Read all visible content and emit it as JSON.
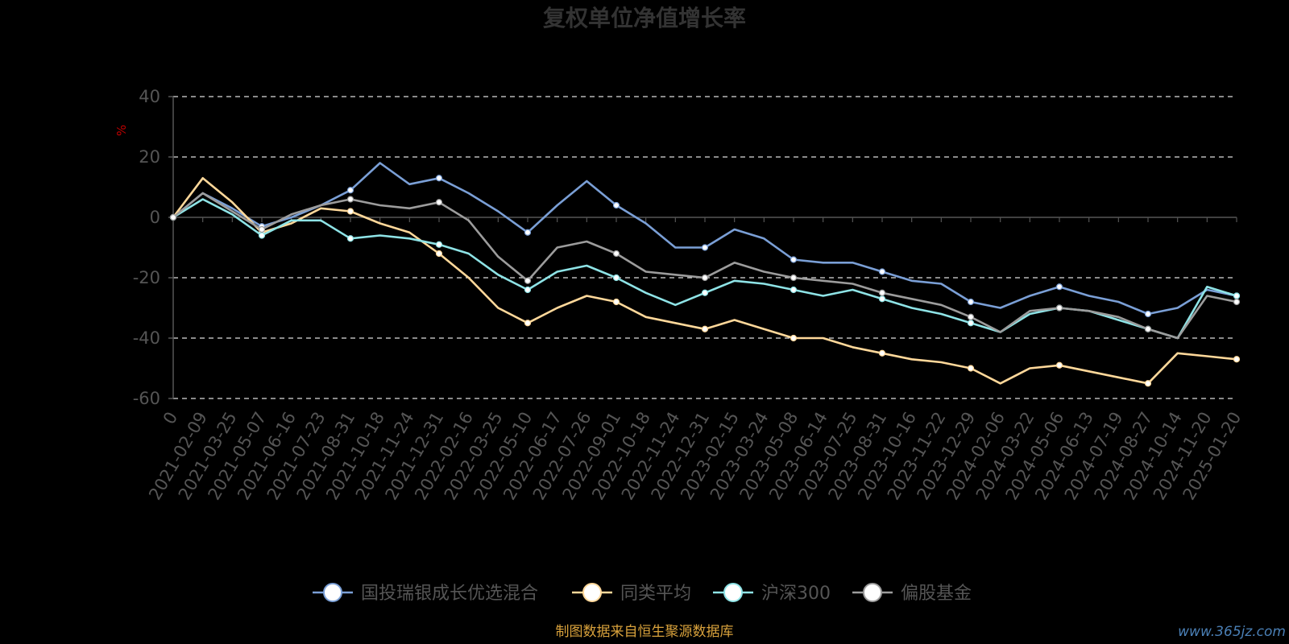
{
  "chart_data": {
    "type": "line",
    "title": "复权单位净值增长率",
    "ylabel": "%",
    "ylim": [
      -60,
      40
    ],
    "yticks": [
      40,
      20,
      0,
      -20,
      -40,
      -60
    ],
    "grid": true,
    "legend_position": "bottom",
    "x_tick_labels": [
      "0",
      "2021-02-09",
      "2021-03-25",
      "2021-05-07",
      "2021-06-16",
      "2021-07-23",
      "2021-08-31",
      "2021-10-18",
      "2021-11-24",
      "2021-12-31",
      "2022-02-16",
      "2022-03-25",
      "2022-05-10",
      "2022-06-17",
      "2022-07-26",
      "2022-09-01",
      "2022-10-18",
      "2022-11-24",
      "2022-12-31",
      "2023-02-15",
      "2023-03-24",
      "2023-05-08",
      "2023-06-14",
      "2023-07-25",
      "2023-08-31",
      "2023-10-16",
      "2023-11-22",
      "2023-12-29",
      "2024-02-06",
      "2024-03-22",
      "2024-05-06",
      "2024-06-13",
      "2024-07-19",
      "2024-08-27",
      "2024-10-14",
      "2024-11-20",
      "2025-01-20"
    ],
    "series": [
      {
        "name": "国投瑞银成长优选混合",
        "color": "#7a9fd6",
        "values": [
          0,
          8,
          3,
          -3,
          0,
          4,
          9,
          18,
          11,
          13,
          8,
          2,
          -5,
          4,
          12,
          4,
          -2,
          -10,
          -10,
          -4,
          -7,
          -14,
          -15,
          -15,
          -18,
          -21,
          -22,
          -28,
          -30,
          -26,
          -23,
          -26,
          -28,
          -32,
          -30,
          -24,
          -26
        ]
      },
      {
        "name": "同类平均",
        "color": "#ffd89a",
        "values": [
          0,
          13,
          5,
          -5,
          -2,
          3,
          2,
          -2,
          -5,
          -12,
          -20,
          -30,
          -35,
          -30,
          -26,
          -28,
          -33,
          -35,
          -37,
          -34,
          -37,
          -40,
          -40,
          -43,
          -45,
          -47,
          -48,
          -50,
          -55,
          -50,
          -49,
          -51,
          -53,
          -55,
          -45,
          -46,
          -47
        ]
      },
      {
        "name": "沪深300",
        "color": "#8ee3e6",
        "values": [
          0,
          6,
          1,
          -6,
          -1,
          -1,
          -7,
          -6,
          -7,
          -9,
          -12,
          -19,
          -24,
          -18,
          -16,
          -20,
          -25,
          -29,
          -25,
          -21,
          -22,
          -24,
          -26,
          -24,
          -27,
          -30,
          -32,
          -35,
          -38,
          -32,
          -30,
          -31,
          -34,
          -37,
          -40,
          -23,
          -26
        ]
      },
      {
        "name": "偏股基金",
        "color": "#9c9c9c",
        "values": [
          0,
          8,
          2,
          -4,
          1,
          4,
          6,
          4,
          3,
          5,
          -1,
          -13,
          -21,
          -10,
          -8,
          -12,
          -18,
          -19,
          -20,
          -15,
          -18,
          -20,
          -21,
          -22,
          -25,
          -27,
          -29,
          -33,
          -38,
          -31,
          -30,
          -31,
          -33,
          -37,
          -40,
          -26,
          -28
        ]
      }
    ]
  },
  "footer": {
    "source": "制图数据来自恒生聚源数据库",
    "watermark": "www.365jz.com"
  }
}
